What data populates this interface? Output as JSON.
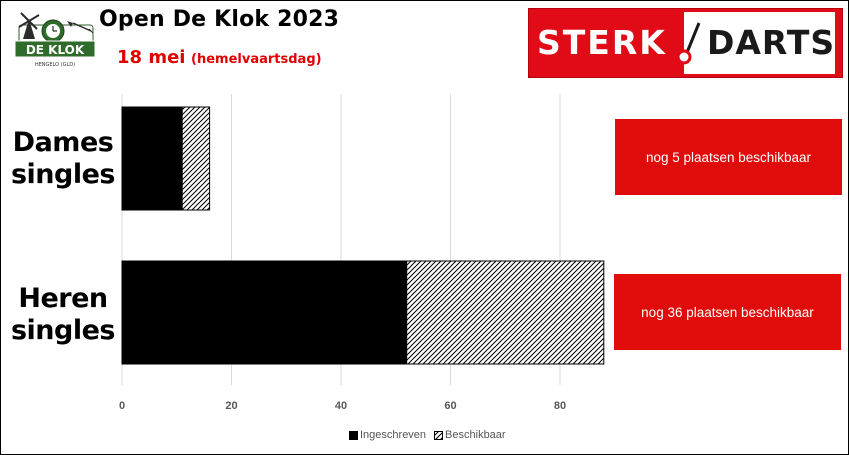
{
  "header": {
    "title": "Open De Klok 2023",
    "date": "18 mei",
    "note": "(hemelvaartsdag)",
    "logo_text": "DE KLOK",
    "logo_subtext": "HENGELO (GLD)"
  },
  "sponsor": {
    "word1": "STERK",
    "word2": "DARTS",
    "colors": {
      "red": "#e10b17",
      "white": "#ffffff",
      "text_dark": "#1a1a1a"
    }
  },
  "chart_data": {
    "type": "bar",
    "orientation": "horizontal",
    "stacked": true,
    "categories": [
      "Dames singles",
      "Heren singles"
    ],
    "category_lines": [
      [
        "Dames",
        "singles"
      ],
      [
        "Heren",
        "singles"
      ]
    ],
    "series": [
      {
        "name": "Ingeschreven",
        "values": [
          11,
          52
        ],
        "color": "#000000",
        "pattern": "solid"
      },
      {
        "name": "Beschikbaar",
        "values": [
          5,
          36
        ],
        "color": "#000000",
        "pattern": "diagonal-hatch"
      }
    ],
    "xlim": [
      0,
      90
    ],
    "xticks": [
      0,
      20,
      40,
      60,
      80
    ],
    "grid": true,
    "legend_position": "bottom"
  },
  "annotations": [
    {
      "category": "Dames singles",
      "text": "nog 5 plaatsen beschikbaar",
      "color": "#e00b0b"
    },
    {
      "category": "Heren singles",
      "text": "nog 36 plaatsen beschikbaar",
      "color": "#e00b0b"
    }
  ]
}
